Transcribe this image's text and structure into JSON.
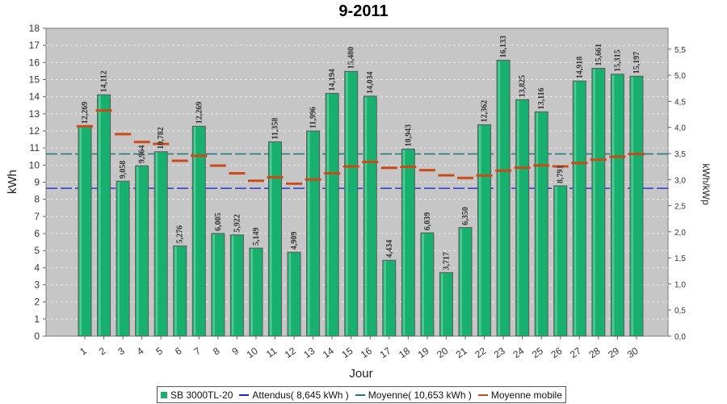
{
  "chart_data": {
    "type": "bar",
    "title": "9-2011",
    "xlabel": "Jour",
    "ylabel": "kWh",
    "ylabel_right": "kWh/kWp",
    "ylim": [
      0,
      18
    ],
    "y_ticks": [
      "0",
      "1",
      "2",
      "3",
      "4",
      "5",
      "6",
      "7",
      "8",
      "9",
      "10",
      "11",
      "12",
      "13",
      "14",
      "15",
      "16",
      "17",
      "18"
    ],
    "right_ylim": [
      0,
      5.9
    ],
    "right_ticks": [
      "0,0",
      "0,5",
      "1,0",
      "1,5",
      "2,0",
      "2,5",
      "3,0",
      "3,5",
      "4,0",
      "4,5",
      "5,0",
      "5,5"
    ],
    "grid": true,
    "legend_position": "bottom",
    "categories": [
      "1",
      "2",
      "3",
      "4",
      "5",
      "6",
      "7",
      "8",
      "9",
      "10",
      "11",
      "12",
      "13",
      "14",
      "15",
      "16",
      "17",
      "18",
      "19",
      "20",
      "21",
      "22",
      "23",
      "24",
      "25",
      "26",
      "27",
      "28",
      "29",
      "30"
    ],
    "series": [
      {
        "name": "SB 3000TL-20",
        "values": [
          12.269,
          14.112,
          9.058,
          9.964,
          10.782,
          5.276,
          12.269,
          6.005,
          5.922,
          5.149,
          11.358,
          4.909,
          11.996,
          14.194,
          15.48,
          14.034,
          4.434,
          10.943,
          6.039,
          3.717,
          6.35,
          12.362,
          16.133,
          13.825,
          13.116,
          8.791,
          14.918,
          15.661,
          15.315,
          15.197
        ],
        "labels": [
          "12,269",
          "14,112",
          "9,058",
          "9,964",
          "10,782",
          "5,276",
          "12,269",
          "6,005",
          "5,922",
          "5,149",
          "11,358",
          "4,909",
          "11,996",
          "14,194",
          "15,480",
          "14,034",
          "4,434",
          "10,943",
          "6,039",
          "3,717",
          "6,350",
          "12,362",
          "16,133",
          "13,825",
          "13,116",
          "8,791",
          "14,918",
          "15,661",
          "15,315",
          "15,197"
        ],
        "color": "#17b06e"
      },
      {
        "name": "Moyenne mobile",
        "values": [
          12.27,
          13.19,
          11.81,
          11.35,
          11.24,
          10.25,
          10.54,
          9.97,
          9.52,
          9.08,
          9.29,
          8.92,
          9.16,
          9.52,
          9.92,
          10.18,
          9.84,
          9.9,
          9.7,
          9.4,
          9.25,
          9.39,
          9.68,
          9.85,
          9.98,
          9.93,
          10.12,
          10.32,
          10.49,
          10.65
        ],
        "color": "#cc4a1a"
      }
    ],
    "reference_lines": [
      {
        "name": "Attendus( 8,645 kWh )",
        "value": 8.645,
        "color": "#1a2bcc"
      },
      {
        "name": "Moyenne( 10,653 kWh )",
        "value": 10.653,
        "color": "#1a7a78"
      }
    ],
    "colors": {
      "plot_bg": "#c6c6c6",
      "grid": "#e8e8e8",
      "bar": "#17b06e",
      "bar_border": "#5a5a5a"
    }
  }
}
